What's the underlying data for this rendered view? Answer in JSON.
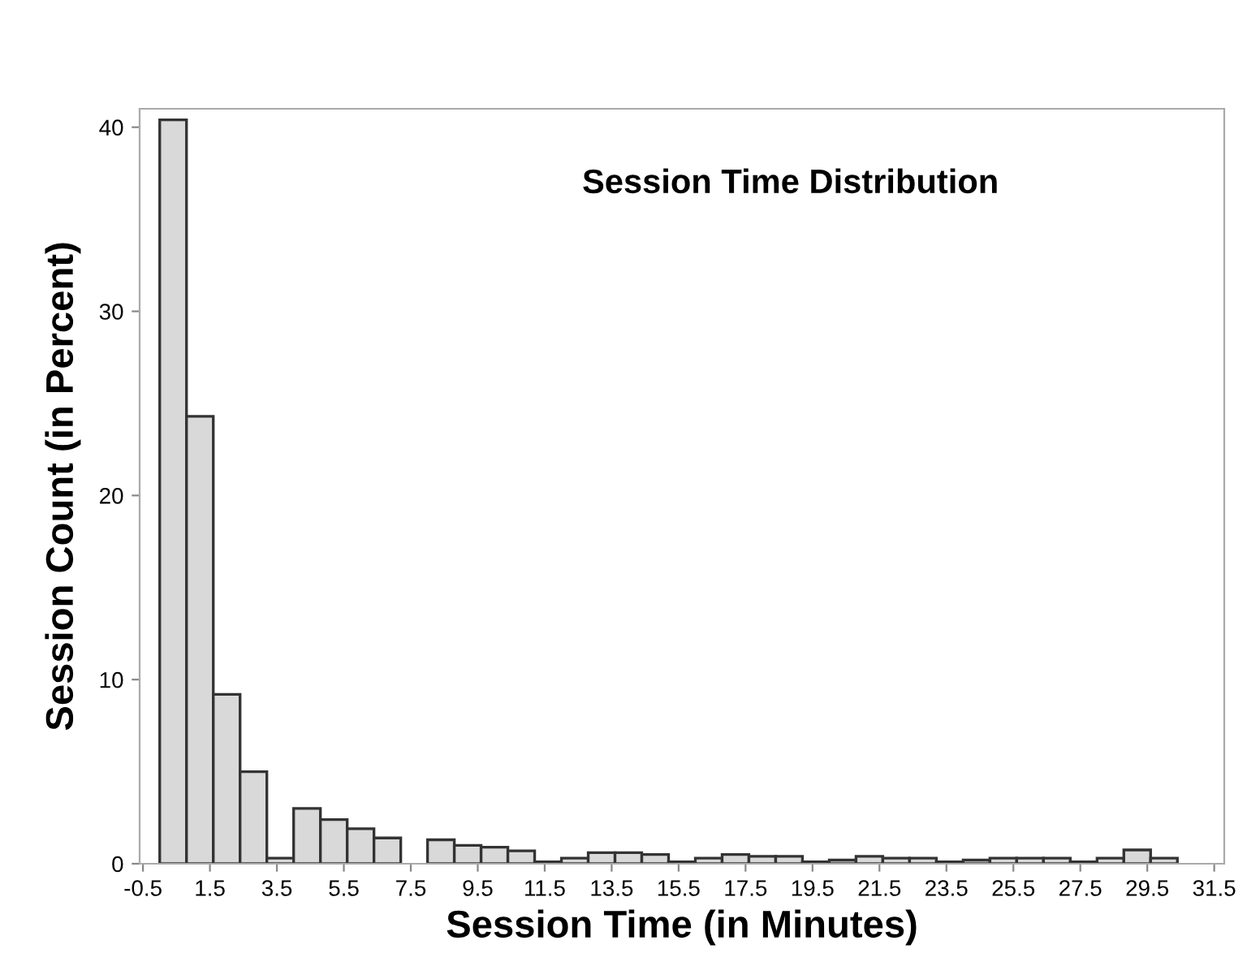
{
  "chart_data": {
    "type": "histogram",
    "title": "Session Time Distribution",
    "xlabel": "Session Time (in Minutes)",
    "ylabel": "Session Count (in Percent)",
    "bins": [
      0,
      0.8,
      1.6,
      2.4,
      3.2,
      4.0,
      4.8,
      5.6,
      6.4,
      7.2,
      8.0,
      8.8,
      9.6,
      10.4,
      11.2,
      12.0,
      12.8,
      13.6,
      14.4,
      15.2,
      16.0,
      16.8,
      17.6,
      18.4,
      19.2,
      20.0,
      20.8,
      21.6,
      22.4,
      23.2,
      24.0,
      24.8,
      25.6,
      26.4,
      27.2,
      28.0,
      28.8,
      29.6,
      30.4
    ],
    "values": [
      40.4,
      24.3,
      9.2,
      5.0,
      0.3,
      3.0,
      2.4,
      1.9,
      1.4,
      0,
      1.3,
      1.0,
      0.9,
      0.7,
      0.1,
      0.3,
      0.6,
      0.6,
      0.5,
      0.1,
      0.3,
      0.5,
      0.4,
      0.4,
      0.1,
      0.2,
      0.4,
      0.3,
      0.3,
      0.1,
      0.2,
      0.3,
      0.3,
      0.3,
      0.1,
      0.3,
      0.75,
      0.3
    ],
    "color": "#d9d9d9",
    "xlim": [
      -0.6,
      31.8
    ],
    "ylim": [
      0,
      41
    ],
    "xticks": [
      -0.5,
      1.5,
      3.5,
      5.5,
      7.5,
      9.5,
      11.5,
      13.5,
      15.5,
      17.5,
      19.5,
      21.5,
      23.5,
      25.5,
      27.5,
      29.5,
      31.5
    ],
    "yticks": [
      0,
      10,
      20,
      30,
      40
    ],
    "grid": false
  }
}
